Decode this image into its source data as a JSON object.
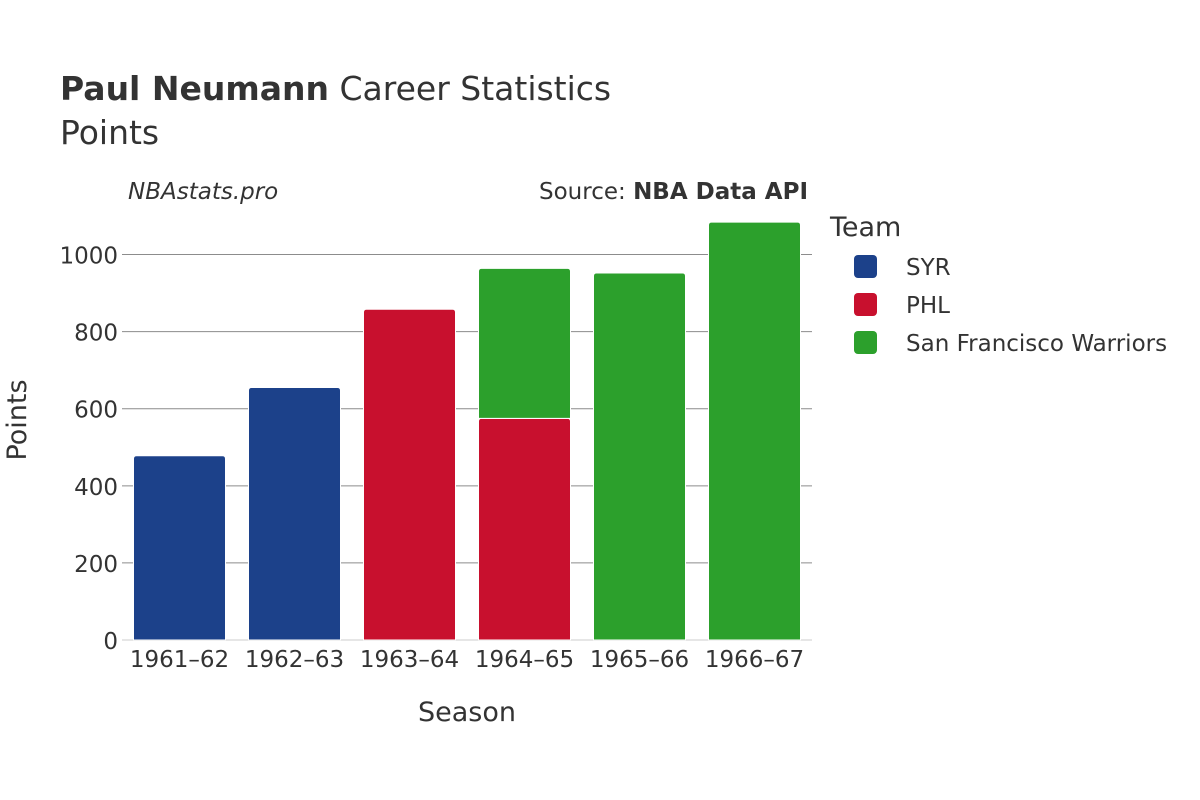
{
  "header": {
    "title_bold": "Paul Neumann",
    "title_rest": "Career Statistics",
    "subtitle": "Points",
    "watermark": "NBAstats.pro",
    "source_prefix": "Source: ",
    "source_name": "NBA Data API"
  },
  "legend": {
    "title": "Team",
    "placement": "right"
  },
  "chart_data": {
    "type": "bar",
    "stacked": true,
    "categories": [
      "1961–62",
      "1962–63",
      "1963–64",
      "1964–65",
      "1965–66",
      "1966–67"
    ],
    "series": [
      {
        "name": "SYR",
        "color": "#1c418a",
        "values": [
          478,
          655,
          0,
          0,
          0,
          0
        ]
      },
      {
        "name": "PHL",
        "color": "#c8102e",
        "values": [
          0,
          0,
          858,
          575,
          0,
          0
        ]
      },
      {
        "name": "San Francisco Warriors",
        "color": "#2ca02c",
        "values": [
          0,
          0,
          0,
          389,
          952,
          1084
        ]
      }
    ],
    "xlabel": "Season",
    "ylabel": "Points",
    "ylim": [
      0,
      1100
    ],
    "yticks": [
      0,
      200,
      400,
      600,
      800,
      1000
    ],
    "grid": true
  }
}
